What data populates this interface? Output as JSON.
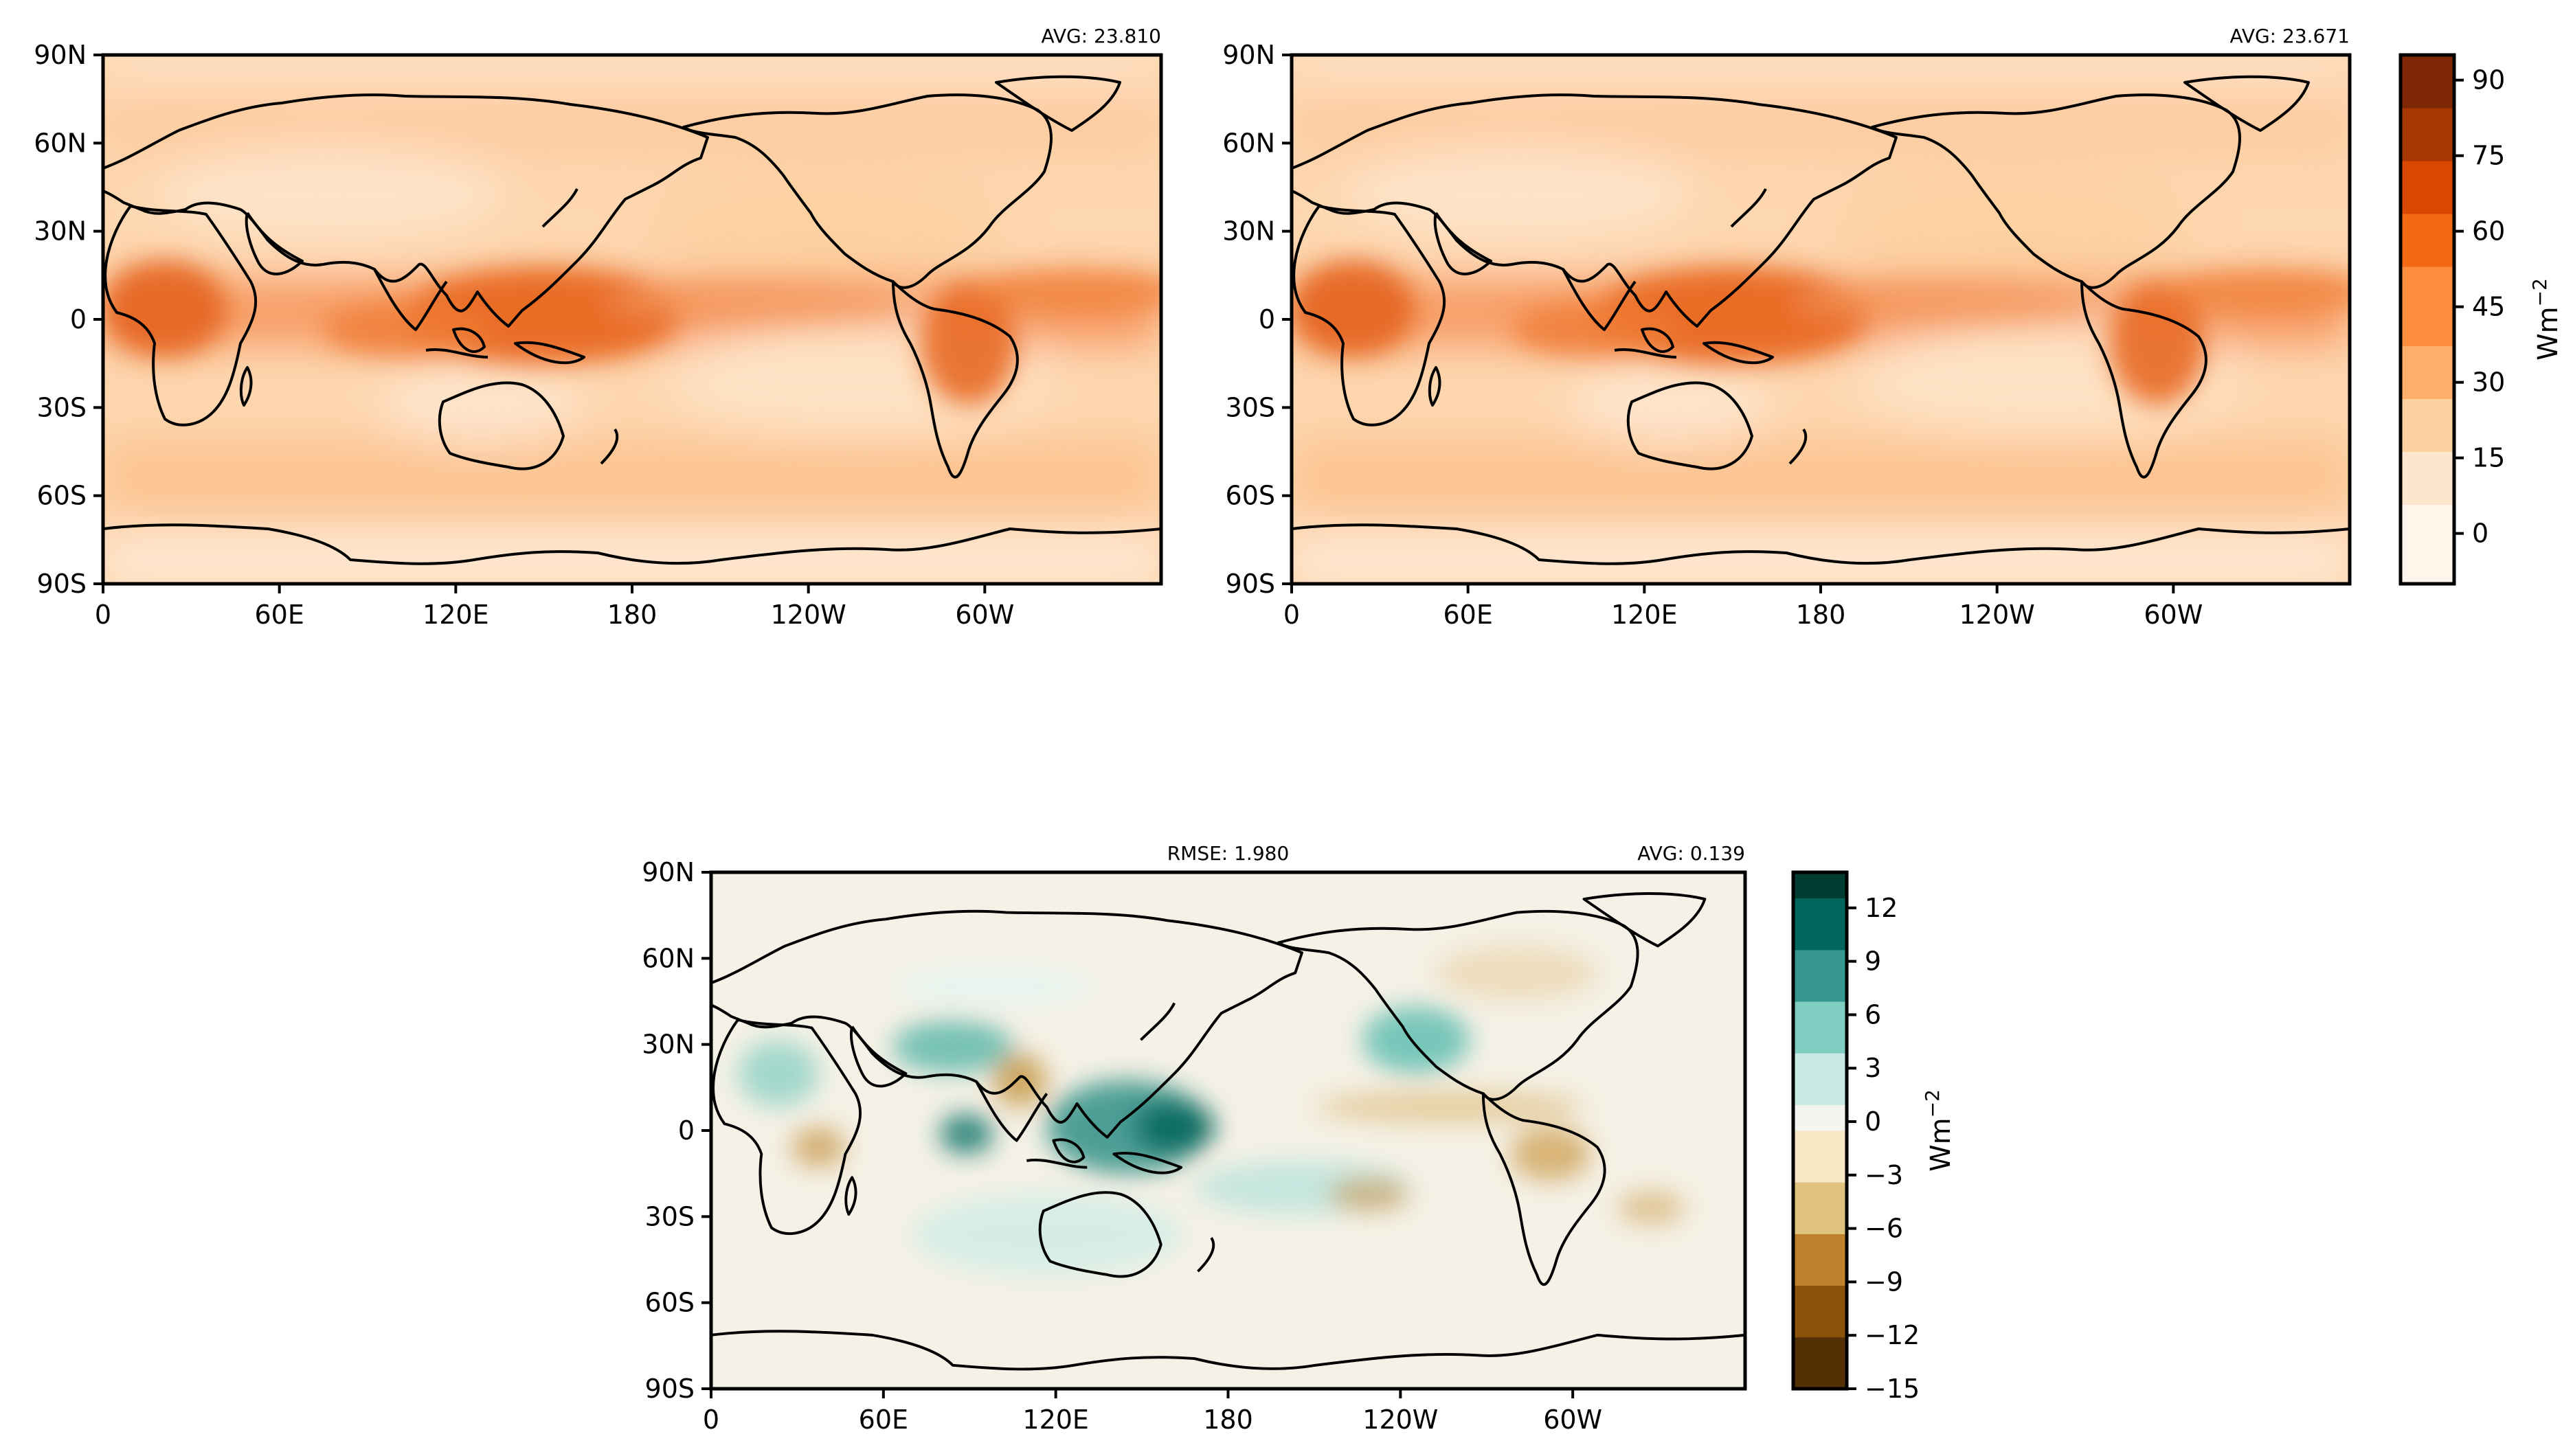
{
  "figure": {
    "panels": [
      {
        "id": "model",
        "avg_text": "AVG: 23.810",
        "colormap": "oranges",
        "lon_ticks": [
          "0",
          "60E",
          "120E",
          "180",
          "120W",
          "60W"
        ],
        "lat_ticks": [
          "90N",
          "60N",
          "30N",
          "0",
          "30S",
          "60S",
          "90S"
        ]
      },
      {
        "id": "obs",
        "avg_text": "AVG: 23.671",
        "colormap": "oranges",
        "lon_ticks": [
          "0",
          "60E",
          "120E",
          "180",
          "120W",
          "60W"
        ],
        "lat_ticks": [
          "90N",
          "60N",
          "30N",
          "0",
          "30S",
          "60S",
          "90S"
        ]
      },
      {
        "id": "diff",
        "rmse_text": "RMSE: 1.980",
        "avg_text": "AVG: 0.139",
        "colormap": "brown-teal",
        "lon_ticks": [
          "0",
          "60E",
          "120E",
          "180",
          "120W",
          "60W"
        ],
        "lat_ticks": [
          "90N",
          "60N",
          "30N",
          "0",
          "30S",
          "60S",
          "90S"
        ]
      }
    ],
    "colorbars": [
      {
        "id": "top",
        "label": "Wm",
        "label_sup": "−2",
        "tick_values": [
          90,
          75,
          60,
          45,
          30,
          15,
          0
        ],
        "tick_labels": [
          "90",
          "75",
          "60",
          "45",
          "30",
          "15",
          "0"
        ],
        "range": [
          -10,
          95
        ],
        "colors": [
          "#fff5eb",
          "#fee6ce",
          "#fdd0a2",
          "#fdae6b",
          "#fd8d3c",
          "#f16913",
          "#d94801",
          "#a63603",
          "#7f2704"
        ]
      },
      {
        "id": "bottom",
        "label": "Wm",
        "label_sup": "−2",
        "tick_values": [
          12,
          9,
          6,
          3,
          0,
          -3,
          -6,
          -9,
          -12,
          -15
        ],
        "tick_labels": [
          "12",
          "9",
          "6",
          "3",
          "0",
          "−3",
          "−6",
          "−9",
          "−12",
          "−15"
        ],
        "range": [
          -15,
          14
        ],
        "colors": [
          "#543005",
          "#8c510a",
          "#bf812d",
          "#dfc27d",
          "#f6e8c3",
          "#f5f5f0",
          "#c7eae5",
          "#80cdc1",
          "#35978f",
          "#01665e",
          "#003c30"
        ]
      }
    ]
  }
}
